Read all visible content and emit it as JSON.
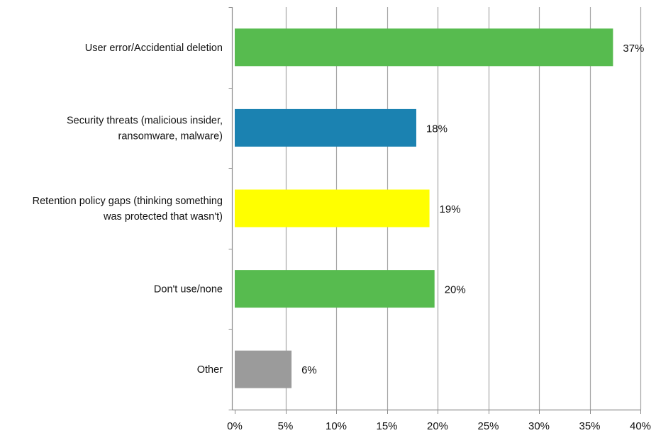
{
  "chart_data": {
    "type": "bar",
    "orientation": "horizontal",
    "title": "",
    "xlabel": "",
    "ylabel": "",
    "categories": [
      "User error/Accidential deletion",
      "Security threats (malicious insider,\nransomware, malware)",
      "Retention policy gaps (thinking something\nwas protected that wasn't)",
      "Don't use/none",
      "Other"
    ],
    "values": [
      37.3,
      17.9,
      19.2,
      19.7,
      5.6
    ],
    "data_labels": [
      "37%",
      "18%",
      "19%",
      "20%",
      "6%"
    ],
    "colors": [
      "#57bb4f",
      "#1b82b1",
      "#ffff00",
      "#57bb4f",
      "#9b9b9b"
    ],
    "xlim": [
      0,
      40
    ],
    "x_ticks": [
      0,
      5,
      10,
      15,
      20,
      25,
      30,
      35,
      40
    ],
    "x_tick_labels": [
      "0%",
      "5%",
      "10%",
      "15%",
      "20%",
      "25%",
      "30%",
      "35%",
      "40%"
    ],
    "grid": "vertical",
    "gridline_color": "#a6a6a6",
    "axis_color": "#8c8c8c",
    "legend": "none"
  }
}
